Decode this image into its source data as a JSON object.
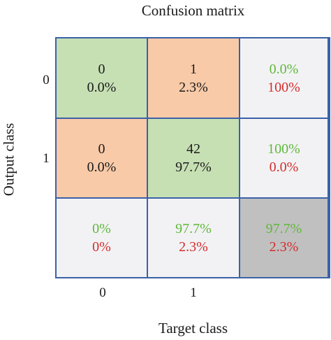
{
  "chart_data": {
    "type": "table",
    "title": "Confusion matrix",
    "xlabel": "Target class",
    "ylabel": "Output class",
    "x_ticks": [
      "0",
      "1"
    ],
    "y_ticks": [
      "0",
      "1"
    ],
    "colors": {
      "correct": "#c6e0b4",
      "incorrect": "#f8caa8",
      "summary": "#f2f2f4",
      "total": "#c0c0c0",
      "border": "#3b61a8",
      "good_text": "#5fb83a",
      "bad_text": "#d42c2c"
    },
    "cells": [
      [
        {
          "count": "0",
          "percent": "0.0%",
          "kind": "correct"
        },
        {
          "count": "1",
          "percent": "2.3%",
          "kind": "incorrect"
        },
        {
          "top": "0.0%",
          "bottom": "100%",
          "kind": "summary"
        }
      ],
      [
        {
          "count": "0",
          "percent": "0.0%",
          "kind": "incorrect"
        },
        {
          "count": "42",
          "percent": "97.7%",
          "kind": "correct"
        },
        {
          "top": "100%",
          "bottom": "0.0%",
          "kind": "summary"
        }
      ],
      [
        {
          "top": "0%",
          "bottom": "0%",
          "kind": "summary"
        },
        {
          "top": "97.7%",
          "bottom": "2.3%",
          "kind": "summary"
        },
        {
          "top": "97.7%",
          "bottom": "2.3%",
          "kind": "total"
        }
      ]
    ]
  }
}
